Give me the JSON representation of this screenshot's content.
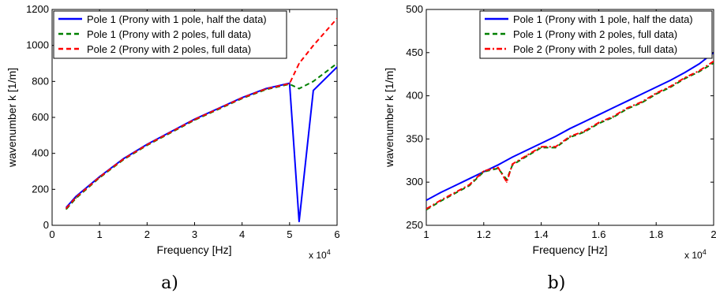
{
  "chart_data": [
    {
      "type": "line",
      "panel_label": "a)",
      "xlabel": "Frequency [Hz]",
      "ylabel": "wavenumber k [1/m]",
      "x_multiplier_label": "x 10",
      "x_multiplier_exp": "4",
      "xlim": [
        0,
        6
      ],
      "ylim": [
        0,
        1200
      ],
      "xticks": [
        "0",
        "1",
        "2",
        "3",
        "4",
        "5",
        "6"
      ],
      "yticks": [
        "0",
        "200",
        "400",
        "600",
        "800",
        "1000",
        "1200"
      ],
      "legend_position": "top-left",
      "series": [
        {
          "name": "Pole 1 (Prony with 1 pole, half the data)",
          "color": "#0000ff",
          "style": "solid",
          "x": [
            0.3,
            0.5,
            1.0,
            1.5,
            2.0,
            2.5,
            3.0,
            3.5,
            4.0,
            4.5,
            5.0,
            5.2,
            5.5,
            6.0
          ],
          "y": [
            100,
            160,
            270,
            370,
            450,
            520,
            590,
            650,
            710,
            760,
            790,
            20,
            750,
            880
          ]
        },
        {
          "name": "Pole 1 (Prony with 2 poles, full data)",
          "color": "#008000",
          "style": "dashed",
          "x": [
            0.3,
            0.5,
            1.0,
            1.5,
            2.0,
            2.5,
            3.0,
            3.5,
            4.0,
            4.5,
            5.0,
            5.2,
            5.5,
            6.0
          ],
          "y": [
            90,
            150,
            265,
            365,
            445,
            515,
            585,
            645,
            705,
            755,
            785,
            760,
            800,
            900
          ]
        },
        {
          "name": "Pole 2 (Prony with 2 poles, full data)",
          "color": "#ff0000",
          "style": "dashed",
          "x": [
            0.3,
            0.5,
            1.0,
            1.5,
            2.0,
            2.5,
            3.0,
            3.5,
            4.0,
            4.5,
            5.0,
            5.2,
            5.5,
            6.0
          ],
          "y": [
            95,
            155,
            268,
            368,
            448,
            518,
            588,
            648,
            708,
            758,
            788,
            900,
            1000,
            1150
          ]
        }
      ]
    },
    {
      "type": "line",
      "panel_label": "b)",
      "xlabel": "Frequency [Hz]",
      "ylabel": "wavenumber k [1/m]",
      "x_multiplier_label": "x 10",
      "x_multiplier_exp": "4",
      "xlim": [
        1,
        2
      ],
      "ylim": [
        250,
        500
      ],
      "xticks": [
        "1",
        "1.2",
        "1.4",
        "1.6",
        "1.8",
        "2"
      ],
      "yticks": [
        "250",
        "300",
        "350",
        "400",
        "450",
        "500"
      ],
      "legend_position": "top-right",
      "series": [
        {
          "name": "Pole 1 (Prony with 1 pole, half the data)",
          "color": "#0000ff",
          "style": "solid",
          "x": [
            1.0,
            1.05,
            1.1,
            1.15,
            1.2,
            1.25,
            1.3,
            1.35,
            1.4,
            1.45,
            1.5,
            1.55,
            1.6,
            1.65,
            1.7,
            1.75,
            1.8,
            1.85,
            1.9,
            1.95,
            2.0
          ],
          "y": [
            279,
            288,
            296,
            304,
            312,
            320,
            329,
            337,
            345,
            353,
            362,
            370,
            378,
            386,
            394,
            402,
            410,
            418,
            427,
            437,
            450
          ]
        },
        {
          "name": "Pole 1 (Prony with 2 poles, full data)",
          "color": "#008000",
          "style": "dashed",
          "x": [
            1.0,
            1.05,
            1.1,
            1.15,
            1.2,
            1.25,
            1.28,
            1.3,
            1.35,
            1.4,
            1.45,
            1.5,
            1.55,
            1.6,
            1.65,
            1.7,
            1.75,
            1.8,
            1.85,
            1.9,
            1.95,
            2.0
          ],
          "y": [
            268,
            278,
            287,
            296,
            312,
            316,
            303,
            320,
            330,
            340,
            340,
            352,
            358,
            368,
            375,
            385,
            392,
            402,
            410,
            420,
            428,
            438
          ]
        },
        {
          "name": "Pole 2 (Prony with 2 poles, full data)",
          "color": "#ff0000",
          "style": "dashdot",
          "x": [
            1.0,
            1.05,
            1.1,
            1.15,
            1.2,
            1.25,
            1.28,
            1.3,
            1.35,
            1.4,
            1.45,
            1.5,
            1.55,
            1.6,
            1.65,
            1.7,
            1.75,
            1.8,
            1.85,
            1.9,
            1.95,
            2.0
          ],
          "y": [
            269,
            279,
            288,
            297,
            313,
            317,
            300,
            321,
            331,
            341,
            341,
            353,
            359,
            369,
            376,
            386,
            393,
            403,
            411,
            421,
            429,
            440
          ]
        }
      ]
    }
  ]
}
